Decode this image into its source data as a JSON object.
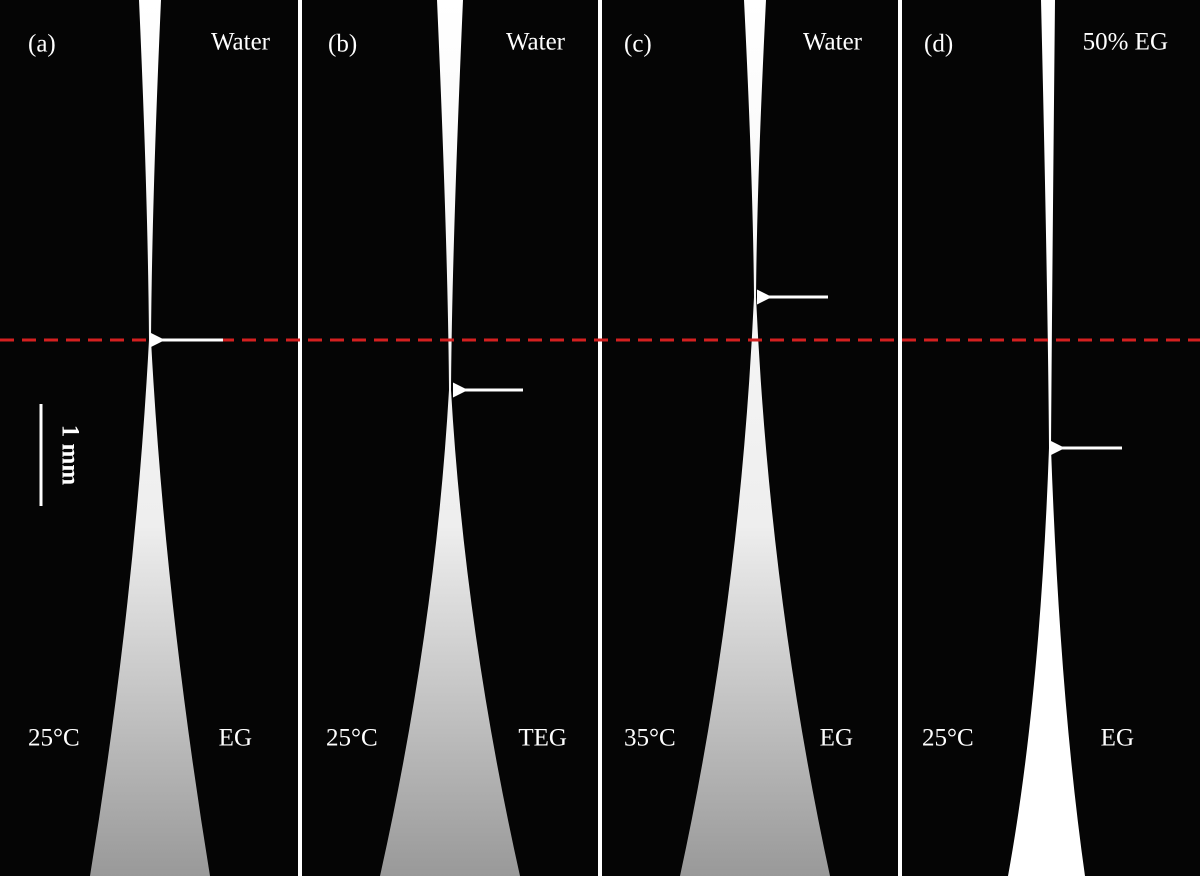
{
  "panels": [
    {
      "label": "(a)",
      "top_text": "Water",
      "temperature": "25°C",
      "bottom_text": "EG"
    },
    {
      "label": "(b)",
      "top_text": "Water",
      "temperature": "25°C",
      "bottom_text": "TEG"
    },
    {
      "label": "(c)",
      "top_text": "Water",
      "temperature": "35°C",
      "bottom_text": "EG"
    },
    {
      "label": "(d)",
      "top_text": "50% EG",
      "temperature": "25°C",
      "bottom_text": "EG"
    }
  ],
  "scale_bar": "1 mm"
}
